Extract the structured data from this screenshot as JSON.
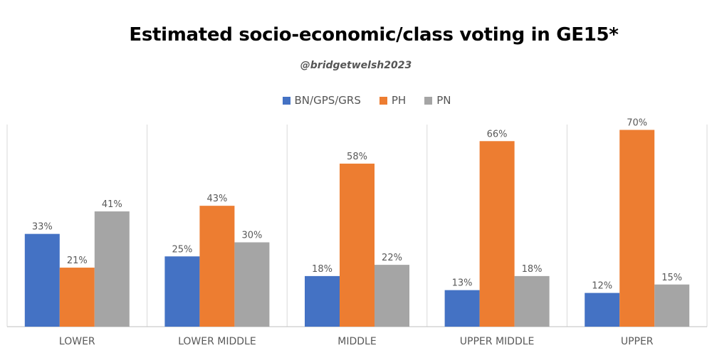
{
  "title": "Estimated socio-economic/class voting in GE15*",
  "credit": "@bridgetwelsh2023",
  "colors": {
    "BN/GPS/GRS": "#4472c4",
    "PH": "#ed7d31",
    "PN": "#a5a5a5"
  },
  "chart_data": {
    "type": "bar",
    "title": "Estimated socio-economic/class voting in GE15*",
    "categories": [
      "LOWER",
      "LOWER MIDDLE",
      "MIDDLE",
      "UPPER MIDDLE",
      "UPPER"
    ],
    "series": [
      {
        "name": "BN/GPS/GRS",
        "values": [
          33,
          25,
          18,
          13,
          12
        ],
        "labels": [
          "33%",
          "25%",
          "18%",
          "13%",
          "12%"
        ]
      },
      {
        "name": "PH",
        "values": [
          21,
          43,
          58,
          66,
          70
        ],
        "labels": [
          "21%",
          "43%",
          "58%",
          "66%",
          "70%"
        ]
      },
      {
        "name": "PN",
        "values": [
          41,
          30,
          22,
          18,
          15
        ],
        "labels": [
          "41%",
          "30%",
          "22%",
          "18%",
          "15%"
        ]
      }
    ],
    "ylim": [
      0,
      80
    ],
    "grid": false,
    "legend": "top"
  }
}
